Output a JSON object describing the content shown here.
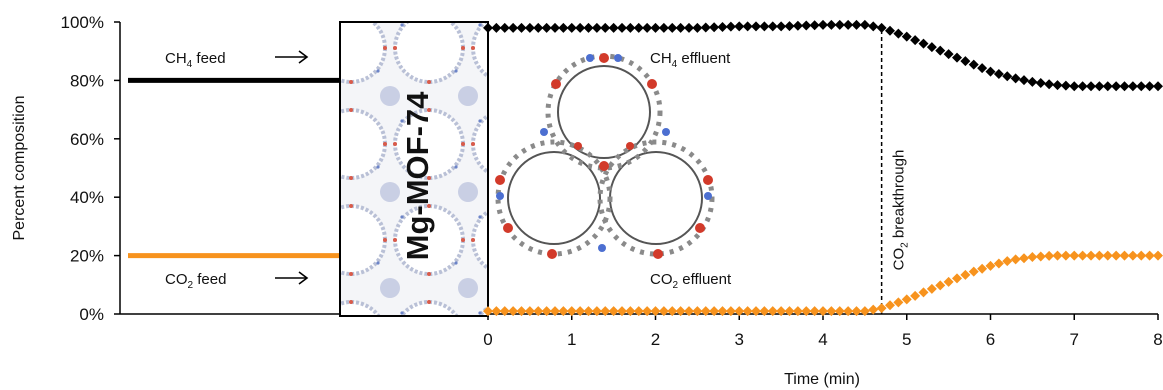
{
  "chart_data": {
    "type": "scatter",
    "title": "",
    "xlabel": "Time (min)",
    "ylabel": "Percent composition",
    "x_ticks": [
      "0",
      "1",
      "2",
      "3",
      "4",
      "5",
      "6",
      "7",
      "8"
    ],
    "y_ticks": [
      "0%",
      "20%",
      "40%",
      "60%",
      "80%",
      "100%"
    ],
    "xlim": [
      0,
      8
    ],
    "ylim": [
      0,
      100
    ],
    "grid": false,
    "feed": {
      "ch4_label": "CH4 feed",
      "ch4_value": 80,
      "co2_label": "CO2 feed",
      "co2_value": 20
    },
    "material_label": "Mg-MOF-74",
    "breakthrough": {
      "label": "CO2 breakthrough",
      "x": 4.7
    },
    "series": [
      {
        "name": "CH4 effluent",
        "color": "#000000",
        "marker": "diamond",
        "x": [
          0,
          0.5,
          1,
          1.5,
          2,
          2.5,
          3,
          3.5,
          4,
          4.5,
          4.7,
          5,
          5.25,
          5.5,
          5.75,
          6,
          6.25,
          6.5,
          6.75,
          7,
          7.25,
          7.5,
          8
        ],
        "values": [
          98,
          98,
          98,
          98,
          98,
          98,
          98.5,
          98.5,
          99,
          99,
          98,
          95,
          92,
          89,
          86,
          83,
          81,
          79.5,
          78.5,
          78,
          78,
          78,
          78
        ]
      },
      {
        "name": "CO2 effluent",
        "color": "#f7931e",
        "marker": "diamond",
        "x": [
          0,
          0.5,
          1,
          1.5,
          2,
          2.5,
          3,
          3.5,
          4,
          4.5,
          4.7,
          5,
          5.25,
          5.5,
          5.75,
          6,
          6.25,
          6.5,
          6.75,
          7,
          7.25,
          7.5,
          8
        ],
        "values": [
          1,
          1,
          1,
          1,
          1,
          1,
          1,
          1,
          1,
          1,
          2,
          5,
          8,
          11,
          14,
          16.5,
          18.5,
          19.5,
          20,
          20,
          20,
          20,
          20
        ]
      }
    ]
  }
}
